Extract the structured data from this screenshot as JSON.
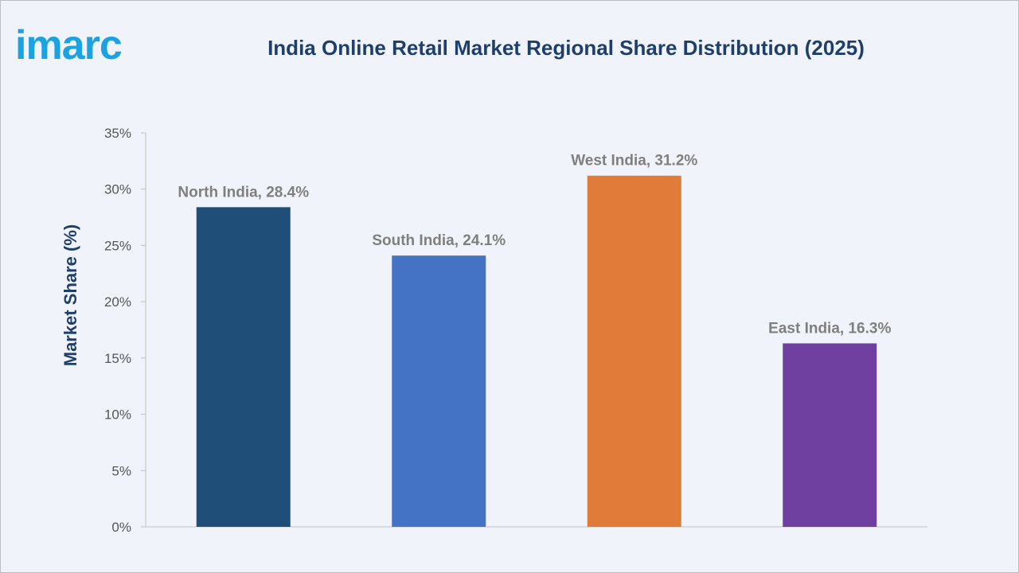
{
  "logo_text": "imarc",
  "chart_data": {
    "type": "bar",
    "title": "India Online Retail Market Regional Share Distribution (2025)",
    "ylabel": "Market Share (%)",
    "xlabel": "",
    "categories": [
      "North India",
      "South India",
      "West India",
      "East India"
    ],
    "values": [
      28.4,
      24.1,
      31.2,
      16.3
    ],
    "data_labels": [
      "North India, 28.4%",
      "South India, 24.1%",
      "West India, 31.2%",
      "East India, 16.3%"
    ],
    "colors": [
      "#1f4e79",
      "#4472c4",
      "#e07b39",
      "#7040a0"
    ],
    "ylim": [
      0,
      35
    ],
    "yticks": [
      0,
      5,
      10,
      15,
      20,
      25,
      30,
      35
    ],
    "ytick_labels": [
      "0%",
      "5%",
      "10%",
      "15%",
      "20%",
      "25%",
      "30%",
      "35%"
    ],
    "grid": false,
    "legend": "none"
  }
}
